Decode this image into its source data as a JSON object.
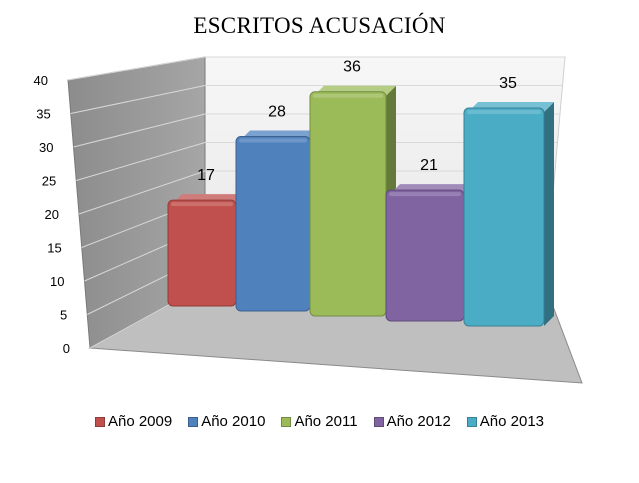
{
  "chart_data": {
    "type": "bar",
    "title": "ESCRITOS ACUSACIÓN",
    "xlabel": "",
    "ylabel": "",
    "ylim": [
      0,
      40
    ],
    "yticks": [
      0,
      5,
      10,
      15,
      20,
      25,
      30,
      35,
      40
    ],
    "grid": true,
    "legend_position": "bottom",
    "style": "3d",
    "series": [
      {
        "name": "Año 2009",
        "values": [
          17
        ],
        "color": "#c0504d"
      },
      {
        "name": "Año 2010",
        "values": [
          28
        ],
        "color": "#4f81bd"
      },
      {
        "name": "Año 2011",
        "values": [
          36
        ],
        "color": "#9bbb59"
      },
      {
        "name": "Año 2012",
        "values": [
          21
        ],
        "color": "#8064a2"
      },
      {
        "name": "Año 2013",
        "values": [
          35
        ],
        "color": "#4bacc6"
      }
    ]
  }
}
